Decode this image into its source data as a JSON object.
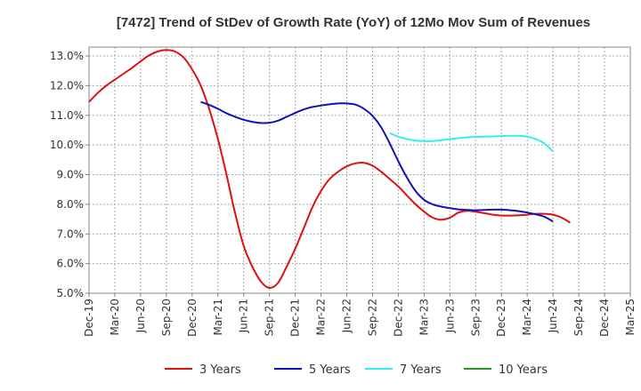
{
  "chart_data": {
    "type": "line",
    "title": "[7472]  Trend of StDev of Growth Rate (YoY) of 12Mo Mov Sum of Revenues",
    "xlabel": "",
    "ylabel": "",
    "ylim": [
      5.0,
      13.3
    ],
    "y_ticks": [
      5.0,
      6.0,
      7.0,
      8.0,
      9.0,
      10.0,
      11.0,
      12.0,
      13.0
    ],
    "y_tick_labels": [
      "5.0%",
      "6.0%",
      "7.0%",
      "8.0%",
      "9.0%",
      "10.0%",
      "11.0%",
      "12.0%",
      "13.0%"
    ],
    "x_tick_labels": [
      "Dec-19",
      "Mar-20",
      "Jun-20",
      "Sep-20",
      "Dec-20",
      "Mar-21",
      "Jun-21",
      "Sep-21",
      "Dec-21",
      "Mar-22",
      "Jun-22",
      "Sep-22",
      "Dec-22",
      "Mar-23",
      "Jun-23",
      "Sep-23",
      "Dec-23",
      "Mar-24",
      "Jun-24",
      "Sep-24",
      "Dec-24",
      "Mar-25"
    ],
    "grid": true,
    "legend_position": "bottom",
    "series": [
      {
        "name": "3 Years",
        "color": "#dd1111",
        "points": [
          [
            0,
            11.45
          ],
          [
            1,
            11.75
          ],
          [
            2,
            12.0
          ],
          [
            3,
            12.2
          ],
          [
            4,
            12.4
          ],
          [
            5,
            12.6
          ],
          [
            6,
            12.82
          ],
          [
            7,
            13.02
          ],
          [
            8,
            13.15
          ],
          [
            9,
            13.2
          ],
          [
            10,
            13.15
          ],
          [
            11,
            12.95
          ],
          [
            12,
            12.55
          ],
          [
            13,
            12.0
          ],
          [
            14,
            11.2
          ],
          [
            15,
            10.2
          ],
          [
            16,
            9.0
          ],
          [
            17,
            7.7
          ],
          [
            18,
            6.6
          ],
          [
            19,
            5.9
          ],
          [
            20,
            5.4
          ],
          [
            21,
            5.18
          ],
          [
            22,
            5.35
          ],
          [
            23,
            5.9
          ],
          [
            24,
            6.5
          ],
          [
            25,
            7.2
          ],
          [
            26,
            7.9
          ],
          [
            27,
            8.45
          ],
          [
            28,
            8.85
          ],
          [
            29,
            9.1
          ],
          [
            30,
            9.28
          ],
          [
            31,
            9.38
          ],
          [
            32,
            9.4
          ],
          [
            33,
            9.3
          ],
          [
            34,
            9.1
          ],
          [
            35,
            8.85
          ],
          [
            36,
            8.6
          ],
          [
            37,
            8.3
          ],
          [
            38,
            8.0
          ],
          [
            39,
            7.75
          ],
          [
            40,
            7.55
          ],
          [
            41,
            7.48
          ],
          [
            42,
            7.55
          ],
          [
            43,
            7.72
          ],
          [
            44,
            7.78
          ],
          [
            45,
            7.75
          ],
          [
            46,
            7.7
          ],
          [
            47,
            7.65
          ],
          [
            48,
            7.62
          ],
          [
            49,
            7.62
          ],
          [
            50,
            7.63
          ],
          [
            51,
            7.65
          ],
          [
            52,
            7.68
          ],
          [
            53,
            7.68
          ],
          [
            54,
            7.65
          ],
          [
            55,
            7.55
          ],
          [
            56,
            7.38
          ]
        ]
      },
      {
        "name": "5 Years",
        "color": "#1111bb",
        "points": [
          [
            13,
            11.45
          ],
          [
            14,
            11.35
          ],
          [
            15,
            11.22
          ],
          [
            16,
            11.07
          ],
          [
            17,
            10.95
          ],
          [
            18,
            10.85
          ],
          [
            19,
            10.78
          ],
          [
            20,
            10.74
          ],
          [
            21,
            10.75
          ],
          [
            22,
            10.82
          ],
          [
            23,
            10.95
          ],
          [
            24,
            11.08
          ],
          [
            25,
            11.2
          ],
          [
            26,
            11.28
          ],
          [
            27,
            11.33
          ],
          [
            28,
            11.37
          ],
          [
            29,
            11.4
          ],
          [
            30,
            11.4
          ],
          [
            31,
            11.36
          ],
          [
            32,
            11.22
          ],
          [
            33,
            10.98
          ],
          [
            34,
            10.6
          ],
          [
            35,
            10.05
          ],
          [
            36,
            9.45
          ],
          [
            37,
            8.9
          ],
          [
            38,
            8.45
          ],
          [
            39,
            8.15
          ],
          [
            40,
            8.0
          ],
          [
            41,
            7.92
          ],
          [
            42,
            7.87
          ],
          [
            43,
            7.83
          ],
          [
            44,
            7.81
          ],
          [
            45,
            7.8
          ],
          [
            46,
            7.81
          ],
          [
            47,
            7.82
          ],
          [
            48,
            7.82
          ],
          [
            49,
            7.8
          ],
          [
            50,
            7.77
          ],
          [
            51,
            7.72
          ],
          [
            52,
            7.66
          ],
          [
            53,
            7.58
          ],
          [
            54,
            7.42
          ]
        ]
      },
      {
        "name": "7 Years",
        "color": "#33eeee",
        "points": [
          [
            35,
            10.4
          ],
          [
            36,
            10.28
          ],
          [
            37,
            10.2
          ],
          [
            38,
            10.15
          ],
          [
            39,
            10.13
          ],
          [
            40,
            10.13
          ],
          [
            41,
            10.16
          ],
          [
            42,
            10.2
          ],
          [
            43,
            10.23
          ],
          [
            44,
            10.26
          ],
          [
            45,
            10.27
          ],
          [
            46,
            10.28
          ],
          [
            47,
            10.29
          ],
          [
            48,
            10.3
          ],
          [
            49,
            10.31
          ],
          [
            50,
            10.31
          ],
          [
            51,
            10.28
          ],
          [
            52,
            10.2
          ],
          [
            53,
            10.05
          ],
          [
            54,
            9.78
          ]
        ]
      },
      {
        "name": "10 Years",
        "color": "#229922",
        "points": []
      }
    ]
  }
}
